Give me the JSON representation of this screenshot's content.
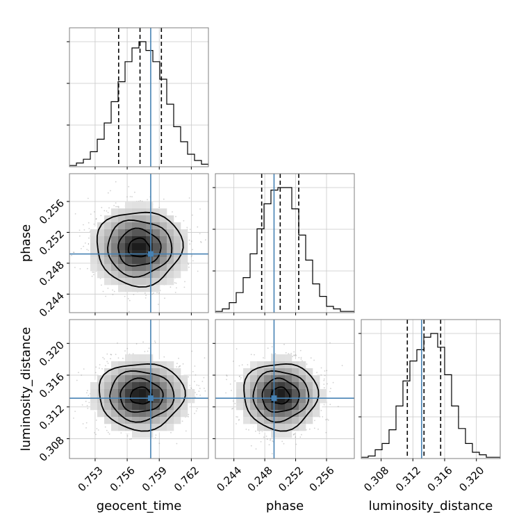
{
  "chart_data": {
    "type": "corner",
    "parameters": [
      "geocent_time",
      "phase",
      "luminosity_distance"
    ],
    "injection": {
      "geocent_time": 0.7582,
      "phase": 0.2492,
      "luminosity_distance": 0.3131
    },
    "axis_ranges": {
      "geocent_time": [
        0.7506,
        0.7636
      ],
      "phase": [
        0.2416,
        0.2596
      ],
      "luminosity_distance": [
        0.3055,
        0.323
      ]
    },
    "ticks": {
      "geocent_time": [
        0.753,
        0.756,
        0.759,
        0.762
      ],
      "phase": [
        0.244,
        0.248,
        0.252,
        0.256
      ],
      "luminosity_distance": [
        0.308,
        0.312,
        0.316,
        0.32
      ]
    },
    "tick_labels": {
      "geocent_time": [
        "0.753",
        "0.756",
        "0.759",
        "0.762"
      ],
      "phase": [
        "0.244",
        "0.248",
        "0.252",
        "0.256"
      ],
      "luminosity_distance": [
        "0.308",
        "0.312",
        "0.316",
        "0.320"
      ]
    },
    "quantiles": {
      "geocent_time": [
        0.7552,
        0.7572,
        0.7592
      ],
      "phase": [
        0.2476,
        0.25,
        0.2524
      ],
      "luminosity_distance": [
        0.3113,
        0.3134,
        0.3155
      ]
    },
    "histograms": {
      "geocent_time": {
        "start": 0.7506,
        "bin_width": 0.00065,
        "counts": [
          1,
          3,
          6,
          12,
          22,
          35,
          52,
          68,
          84,
          95,
          100,
          93,
          84,
          70,
          50,
          32,
          20,
          10,
          5,
          2
        ]
      },
      "phase": {
        "start": 0.2416,
        "bin_width": 0.0009,
        "counts": [
          1,
          3,
          8,
          16,
          28,
          47,
          67,
          87,
          98,
          100,
          100,
          83,
          62,
          42,
          23,
          13,
          5,
          3,
          1,
          1
        ]
      },
      "luminosity_distance": {
        "start": 0.3055,
        "bin_width": 0.000875,
        "counts": [
          1,
          2,
          7,
          12,
          23,
          42,
          62,
          78,
          87,
          97,
          100,
          89,
          67,
          42,
          24,
          12,
          5,
          3,
          1,
          1
        ]
      }
    },
    "posterior_2d": [
      {
        "x": "geocent_time",
        "y": "phase",
        "center": [
          0.7571,
          0.25
        ],
        "sigma": [
          0.002,
          0.0024
        ]
      },
      {
        "x": "geocent_time",
        "y": "luminosity_distance",
        "center": [
          0.7573,
          0.3134
        ],
        "sigma": [
          0.002,
          0.0021
        ]
      },
      {
        "x": "phase",
        "y": "luminosity_distance",
        "center": [
          0.25,
          0.3134
        ],
        "sigma": [
          0.0024,
          0.0021
        ]
      }
    ],
    "grid": true,
    "colors": {
      "truth": "#4682b4",
      "histogram": "#000000",
      "quantile": "#000000",
      "grid": "#c8c8c8",
      "frame": "#7f7f7f"
    }
  }
}
